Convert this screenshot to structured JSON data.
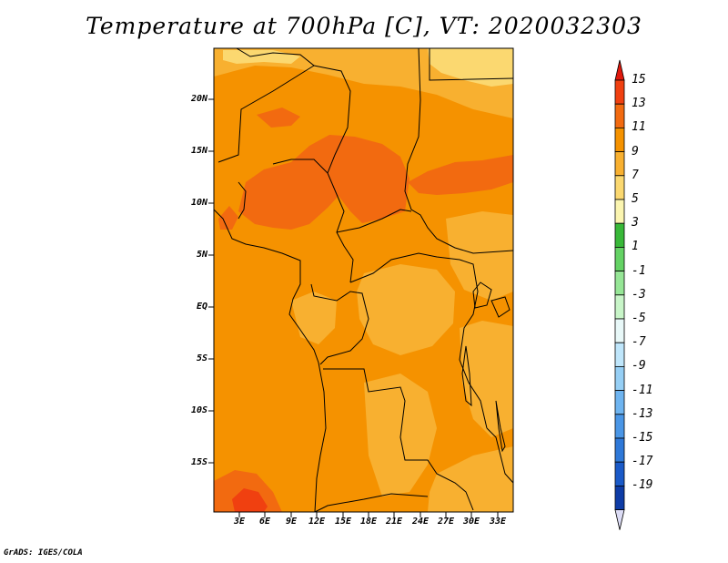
{
  "title": "Temperature at 700hPa [C], VT: 2020032303",
  "credit": "GrADS: IGES/COLA",
  "map": {
    "lat_ticks": [
      "20N",
      "15N",
      "10N",
      "5N",
      "EQ",
      "5S",
      "10S",
      "15S"
    ],
    "lon_ticks": [
      "3E",
      "6E",
      "9E",
      "12E",
      "15E",
      "18E",
      "21E",
      "24E",
      "27E",
      "30E",
      "33E"
    ]
  },
  "colorbar": {
    "labels": [
      "15",
      "13",
      "11",
      "9",
      "7",
      "5",
      "3",
      "1",
      "-1",
      "-3",
      "-5",
      "-7",
      "-9",
      "-11",
      "-13",
      "-15",
      "-17",
      "-19"
    ],
    "colors": [
      "#e0180c",
      "#f04010",
      "#f26a10",
      "#f59200",
      "#f8b030",
      "#fbd870",
      "#fbf5b0",
      "#38b838",
      "#64d264",
      "#96e696",
      "#c8f5c8",
      "#e8f8f8",
      "#bfe6fb",
      "#96cff5",
      "#6eb4f0",
      "#4a96e6",
      "#2e78d8",
      "#1a5ac8",
      "#0e3ca6",
      "#08187a"
    ]
  },
  "colors": {
    "land_base": "#f59200",
    "warm_band": "#f26a10",
    "hot_spot": "#f04010",
    "cool_patch": "#f8b030",
    "cooler_patch": "#fbd870"
  }
}
